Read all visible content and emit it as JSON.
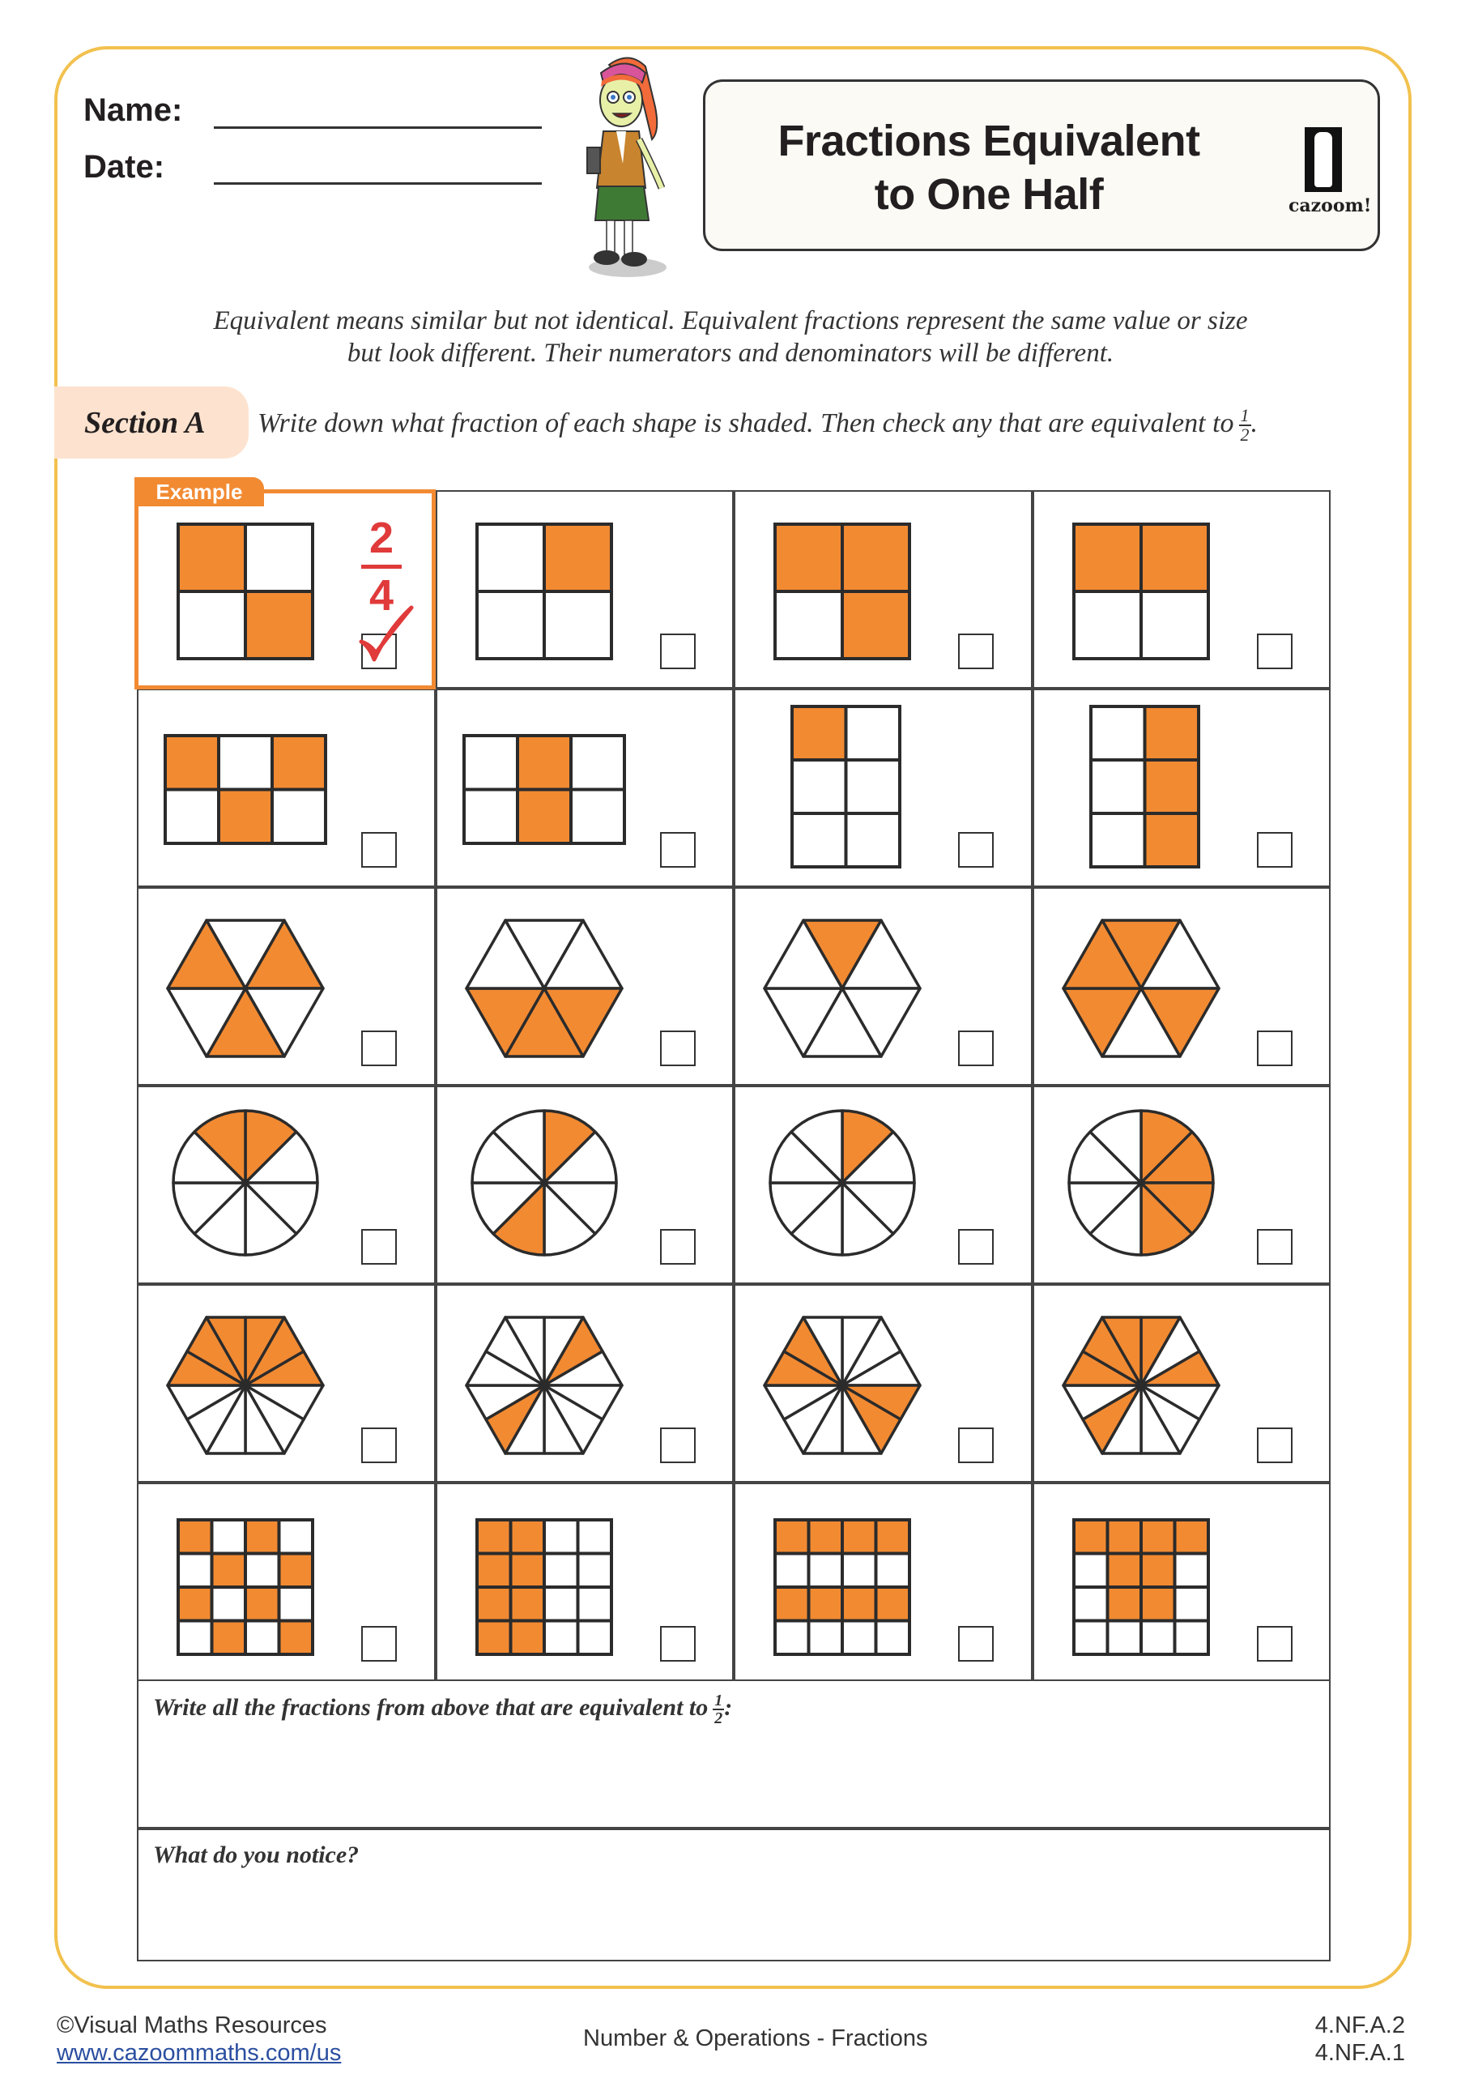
{
  "header": {
    "name_label": "Name:",
    "date_label": "Date:",
    "title_line1": "Fractions Equivalent",
    "title_line2": "to One Half",
    "logo_text": "cazoom!"
  },
  "intro": {
    "line1": "Equivalent means similar but not identical. Equivalent fractions represent the same value or size",
    "line2": "but look different. Their numerators and denominators will be different."
  },
  "section": {
    "label": "Section A",
    "instruction": "Write down what fraction of each shape is shaded. Then check any that are equivalent to",
    "half_num": "1",
    "half_den": "2",
    "end_punct": "."
  },
  "example": {
    "tab_label": "Example",
    "numerator": "2",
    "denominator": "4",
    "checked": true
  },
  "colors": {
    "shade": "#f28a32",
    "frame": "#f2c14e",
    "accent_red": "#e03a3a",
    "section_bg": "#fde3cf"
  },
  "grid": [
    [
      {
        "shape": "grid",
        "cols": 2,
        "rows": 2,
        "shaded": [
          0,
          3
        ],
        "example": true
      },
      {
        "shape": "grid",
        "cols": 2,
        "rows": 2,
        "shaded": [
          1
        ]
      },
      {
        "shape": "grid",
        "cols": 2,
        "rows": 2,
        "shaded": [
          0,
          1,
          3
        ]
      },
      {
        "shape": "grid",
        "cols": 2,
        "rows": 2,
        "shaded": [
          0,
          1
        ]
      }
    ],
    [
      {
        "shape": "grid",
        "cols": 3,
        "rows": 2,
        "shaded": [
          0,
          2,
          4
        ]
      },
      {
        "shape": "grid",
        "cols": 3,
        "rows": 2,
        "shaded": [
          1,
          4
        ]
      },
      {
        "shape": "grid",
        "cols": 2,
        "rows": 3,
        "shaded": [
          0
        ]
      },
      {
        "shape": "grid",
        "cols": 2,
        "rows": 3,
        "shaded": [
          1,
          3,
          5
        ]
      }
    ],
    [
      {
        "shape": "hexagon",
        "parts": 6,
        "shaded": [
          5,
          1,
          3
        ]
      },
      {
        "shape": "hexagon",
        "parts": 6,
        "shaded": [
          2,
          3,
          4
        ]
      },
      {
        "shape": "hexagon",
        "parts": 6,
        "shaded": [
          0
        ]
      },
      {
        "shape": "hexagon",
        "parts": 6,
        "shaded": [
          0,
          5,
          4,
          2
        ]
      }
    ],
    [
      {
        "shape": "circle",
        "parts": 8,
        "shaded": [
          7,
          0
        ]
      },
      {
        "shape": "circle",
        "parts": 8,
        "shaded": [
          0,
          4
        ]
      },
      {
        "shape": "circle",
        "parts": 8,
        "shaded": [
          0
        ]
      },
      {
        "shape": "circle",
        "parts": 8,
        "shaded": [
          0,
          1,
          2,
          3
        ]
      }
    ],
    [
      {
        "shape": "hexagon",
        "parts": 12,
        "shaded": [
          9,
          10,
          11,
          0,
          1,
          2
        ]
      },
      {
        "shape": "hexagon",
        "parts": 12,
        "shaded": [
          1,
          7
        ]
      },
      {
        "shape": "hexagon",
        "parts": 12,
        "shaded": [
          9,
          10,
          3,
          4
        ]
      },
      {
        "shape": "hexagon",
        "parts": 12,
        "shaded": [
          11,
          0,
          9,
          10,
          2,
          7
        ]
      }
    ],
    [
      {
        "shape": "grid",
        "cols": 4,
        "rows": 4,
        "shaded": [
          0,
          2,
          5,
          7,
          8,
          10,
          13,
          15
        ]
      },
      {
        "shape": "grid",
        "cols": 4,
        "rows": 4,
        "shaded": [
          0,
          1,
          4,
          5,
          8,
          9,
          12,
          13
        ]
      },
      {
        "shape": "grid",
        "cols": 4,
        "rows": 4,
        "shaded": [
          0,
          1,
          2,
          3,
          8,
          9,
          10,
          11
        ]
      },
      {
        "shape": "grid",
        "cols": 4,
        "rows": 4,
        "shaded": [
          0,
          1,
          2,
          3,
          5,
          6,
          9,
          10
        ]
      }
    ]
  ],
  "answers": {
    "equivalent_prompt": "Write all the fractions from above that are equivalent to",
    "half_num": "1",
    "half_den": "2",
    "colon": ":",
    "notice_prompt": "What do you notice?"
  },
  "footer": {
    "copyright": "©Visual Maths Resources",
    "link": "www.cazoommaths.com/us",
    "topic": "Number & Operations - Fractions",
    "standard1": "4.NF.A.2",
    "standard2": "4.NF.A.1"
  }
}
